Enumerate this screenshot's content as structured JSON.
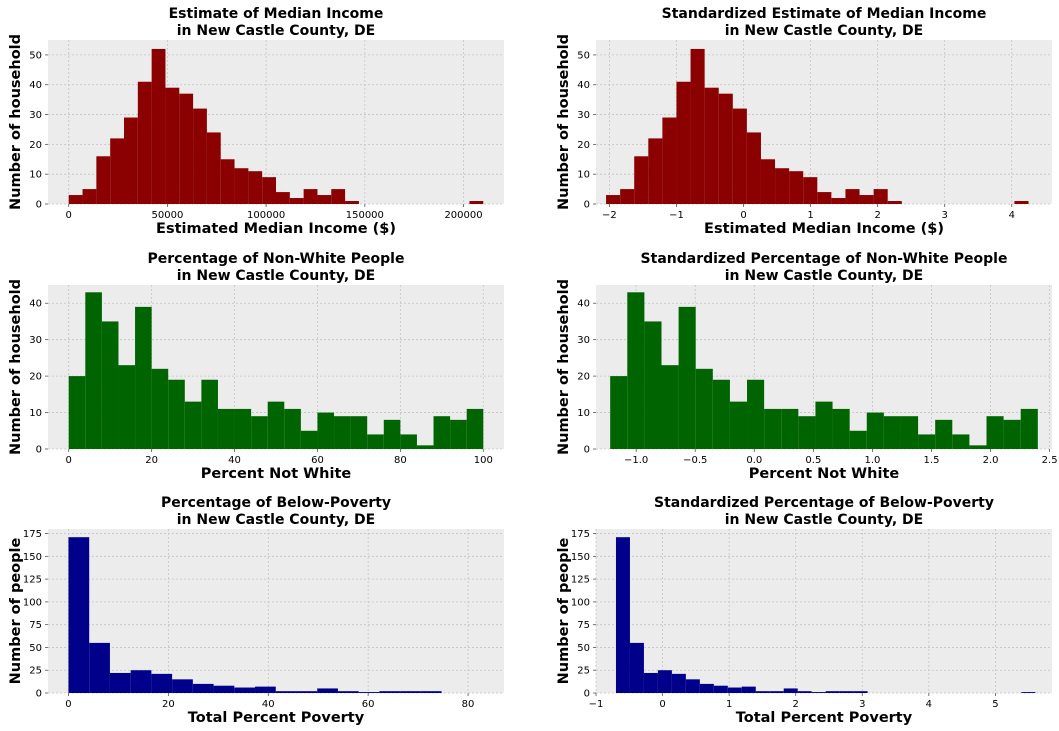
{
  "chart_data": [
    {
      "type": "bar",
      "histogram": true,
      "title": [
        "Estimate of Median Income",
        "in New Castle County, DE"
      ],
      "xlabel": "Estimated Median Income ($)",
      "ylabel": "Number of household",
      "color": "#8b0000",
      "background": "#ececec",
      "grid": true,
      "xlim": [
        -10500,
        220500
      ],
      "ylim": [
        0,
        55
      ],
      "xticks": [
        0,
        50000,
        100000,
        150000,
        200000
      ],
      "xtick_labels": [
        "0",
        "50000",
        "100000",
        "150000",
        "200000"
      ],
      "yticks": [
        0,
        10,
        20,
        30,
        40,
        50
      ],
      "ytick_labels": [
        "0",
        "10",
        "20",
        "30",
        "40",
        "50"
      ],
      "bin_start": 0,
      "bin_width": 7000,
      "values": [
        3,
        5,
        16,
        22,
        29,
        41,
        52,
        39,
        37,
        32,
        24,
        15,
        12,
        11,
        9,
        4,
        2,
        5,
        3,
        5,
        1,
        0,
        0,
        0,
        0,
        0,
        0,
        0,
        0,
        1
      ]
    },
    {
      "type": "bar",
      "histogram": true,
      "title": [
        "Standardized Estimate of Median Income",
        "in New Castle County, DE"
      ],
      "xlabel": "Estimated Median Income ($)",
      "ylabel": "Number of household",
      "color": "#8b0000",
      "background": "#ececec",
      "grid": true,
      "xlim": [
        -2.2,
        4.6
      ],
      "ylim": [
        0,
        55
      ],
      "xticks": [
        -2,
        -1,
        0,
        1,
        2,
        3,
        4
      ],
      "xtick_labels": [
        "−2",
        "−1",
        "0",
        "1",
        "2",
        "3",
        "4"
      ],
      "yticks": [
        0,
        10,
        20,
        30,
        40,
        50
      ],
      "ytick_labels": [
        "0",
        "10",
        "20",
        "30",
        "40",
        "50"
      ],
      "bin_start": -2.05,
      "bin_width": 0.21,
      "values": [
        3,
        5,
        16,
        22,
        29,
        41,
        52,
        39,
        37,
        32,
        24,
        15,
        12,
        11,
        9,
        4,
        2,
        5,
        3,
        5,
        1,
        0,
        0,
        0,
        0,
        0,
        0,
        0,
        0,
        1
      ]
    },
    {
      "type": "bar",
      "histogram": true,
      "title": [
        "Percentage of Non-White People",
        "in New Castle County, DE"
      ],
      "xlabel": "Percent Not White",
      "ylabel": "Number of household",
      "color": "#006400",
      "background": "#ececec",
      "grid": true,
      "xlim": [
        -5,
        105
      ],
      "ylim": [
        0,
        45
      ],
      "xticks": [
        0,
        20,
        40,
        60,
        80,
        100
      ],
      "xtick_labels": [
        "0",
        "20",
        "40",
        "60",
        "80",
        "100"
      ],
      "yticks": [
        0,
        10,
        20,
        30,
        40
      ],
      "ytick_labels": [
        "0",
        "10",
        "20",
        "30",
        "40"
      ],
      "bin_start": 0,
      "bin_width": 4,
      "values": [
        20,
        43,
        35,
        23,
        39,
        22,
        19,
        13,
        19,
        11,
        11,
        9,
        13,
        11,
        5,
        10,
        9,
        9,
        4,
        8,
        4,
        1,
        9,
        8,
        11
      ]
    },
    {
      "type": "bar",
      "histogram": true,
      "title": [
        "Standardized Percentage of Non-White People",
        "in New Castle County, DE"
      ],
      "xlabel": "Percent Not White",
      "ylabel": "Number of household",
      "color": "#006400",
      "background": "#ececec",
      "grid": true,
      "xlim": [
        -1.34,
        2.52
      ],
      "ylim": [
        0,
        45
      ],
      "xticks": [
        -1.0,
        -0.5,
        0.0,
        0.5,
        1.0,
        1.5,
        2.0,
        2.5
      ],
      "xtick_labels": [
        "−1.0",
        "−0.5",
        "0.0",
        "0.5",
        "1.0",
        "1.5",
        "2.0",
        "2.5"
      ],
      "yticks": [
        0,
        10,
        20,
        30,
        40
      ],
      "ytick_labels": [
        "0",
        "10",
        "20",
        "30",
        "40"
      ],
      "bin_start": -1.22,
      "bin_width": 0.1448,
      "values": [
        20,
        43,
        35,
        23,
        39,
        22,
        19,
        13,
        19,
        11,
        11,
        9,
        13,
        11,
        5,
        10,
        9,
        9,
        4,
        8,
        4,
        1,
        9,
        8,
        11
      ]
    },
    {
      "type": "bar",
      "histogram": true,
      "title": [
        "Percentage of Below-Poverty",
        "in New Castle County, DE"
      ],
      "xlabel": "Total Percent Poverty",
      "ylabel": "Number of people",
      "color": "#00008b",
      "background": "#ececec",
      "grid": true,
      "xlim": [
        -4.1,
        87.2
      ],
      "ylim": [
        0,
        180
      ],
      "xticks": [
        0,
        20,
        40,
        60,
        80
      ],
      "xtick_labels": [
        "0",
        "20",
        "40",
        "60",
        "80"
      ],
      "yticks": [
        0,
        25,
        50,
        75,
        100,
        125,
        150,
        175
      ],
      "ytick_labels": [
        "0",
        "25",
        "50",
        "75",
        "100",
        "125",
        "150",
        "175"
      ],
      "bin_start": 0,
      "bin_width": 4.15,
      "values": [
        171,
        55,
        22,
        25,
        21,
        15,
        10,
        8,
        6,
        7,
        2,
        2,
        5,
        2,
        1,
        2,
        2,
        2,
        0,
        0,
        0,
        0,
        0,
        0,
        0,
        0,
        0,
        0,
        0,
        1
      ]
    },
    {
      "type": "bar",
      "histogram": true,
      "title": [
        "Standardized Percentage of Below-Poverty",
        "in New Castle County, DE"
      ],
      "xlabel": "Total Percent Poverty",
      "ylabel": "Number of people",
      "color": "#00008b",
      "background": "#ececec",
      "grid": true,
      "xlim": [
        -1.0,
        5.85
      ],
      "ylim": [
        0,
        180
      ],
      "xticks": [
        -1,
        0,
        1,
        2,
        3,
        4,
        5
      ],
      "xtick_labels": [
        "−1",
        "0",
        "1",
        "2",
        "3",
        "4",
        "5"
      ],
      "yticks": [
        0,
        25,
        50,
        75,
        100,
        125,
        150,
        175
      ],
      "ytick_labels": [
        "0",
        "25",
        "50",
        "75",
        "100",
        "125",
        "150",
        "175"
      ],
      "bin_start": -0.7,
      "bin_width": 0.21,
      "values": [
        171,
        55,
        22,
        25,
        21,
        15,
        10,
        8,
        6,
        7,
        2,
        2,
        5,
        2,
        1,
        2,
        2,
        2,
        0,
        0,
        0,
        0,
        0,
        0,
        0,
        0,
        0,
        0,
        0,
        1
      ]
    }
  ]
}
